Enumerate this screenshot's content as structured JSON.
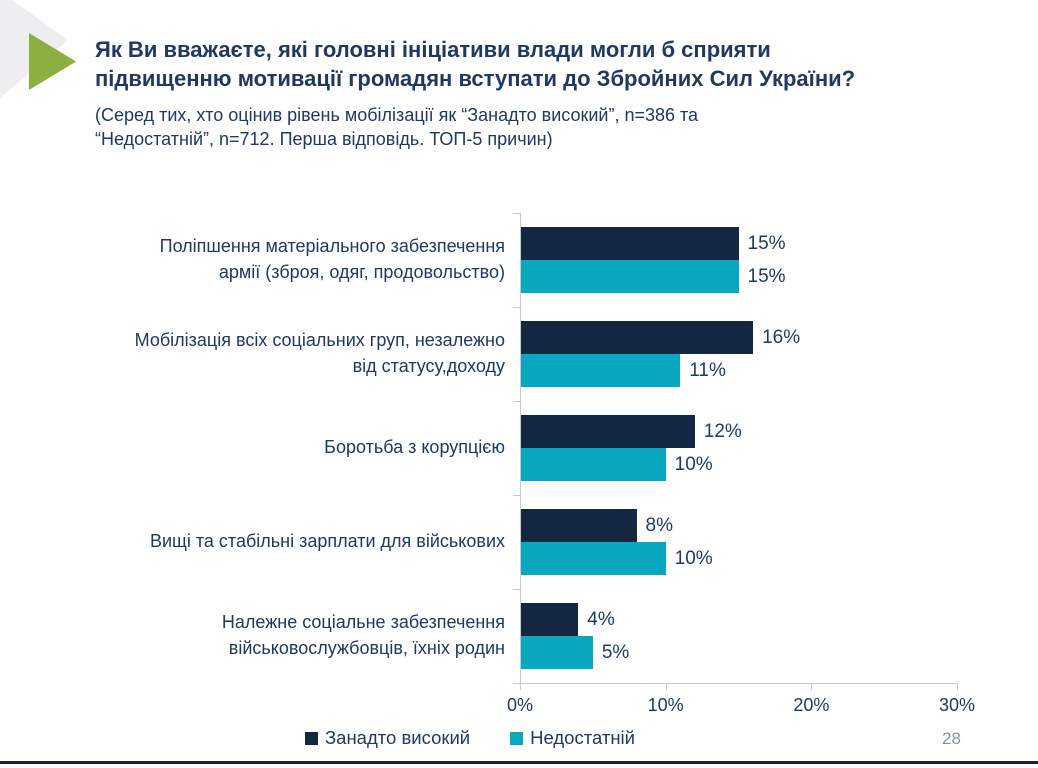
{
  "slide": {
    "page_number": "28",
    "accent_green": "#8cb03f",
    "corner_gray": "#eeeef0",
    "text_navy": "#1f3864",
    "axis_gray": "#c6cad0"
  },
  "header": {
    "title": "Як Ви вважаєте, які головні ініціативи влади могли б сприяти\nпідвищенню мотивації громадян вступати до Збройних Сил України?",
    "subtitle": "(Серед тих, хто оцінив рівень мобілізації як “Занадто високий”, n=386 та\n“Недостатній”, n=712. Перша відповідь. ТОП-5 причин)"
  },
  "chart_data": {
    "type": "bar",
    "orientation": "horizontal",
    "title": "Як Ви вважаєте, які головні ініціативи влади могли б сприяти підвищенню мотивації громадян вступати до Збройних Сил України?",
    "subtitle": "(Серед тих, хто оцінив рівень мобілізації як “Занадто високий”, n=386 та “Недостатній”, n=712. Перша відповідь. ТОП-5 причин)",
    "categories": [
      "Поліпшення матеріального забезпечення\nармії (зброя, одяг, продовольство)",
      "Мобілізація всіх соціальних груп, незалежно\nвід статусу,доходу",
      "Боротьба з корупцією",
      "Вищі та стабільні зарплати для військових",
      "Належне соціальне забезпечення\nвійськовослужбовців, їхніх родин"
    ],
    "series": [
      {
        "name": "Занадто високий",
        "slug": "too-high",
        "color": "#132743",
        "values": [
          15,
          16,
          12,
          8,
          4
        ]
      },
      {
        "name": "Недостатній",
        "slug": "insufficient",
        "color": "#0aa7c1",
        "values": [
          15,
          11,
          10,
          10,
          5
        ]
      }
    ],
    "value_suffix": "%",
    "xlim": [
      0,
      30
    ],
    "x_ticks": [
      "0%",
      "10%",
      "20%",
      "30%"
    ],
    "grid": false,
    "legend_position": "bottom"
  }
}
